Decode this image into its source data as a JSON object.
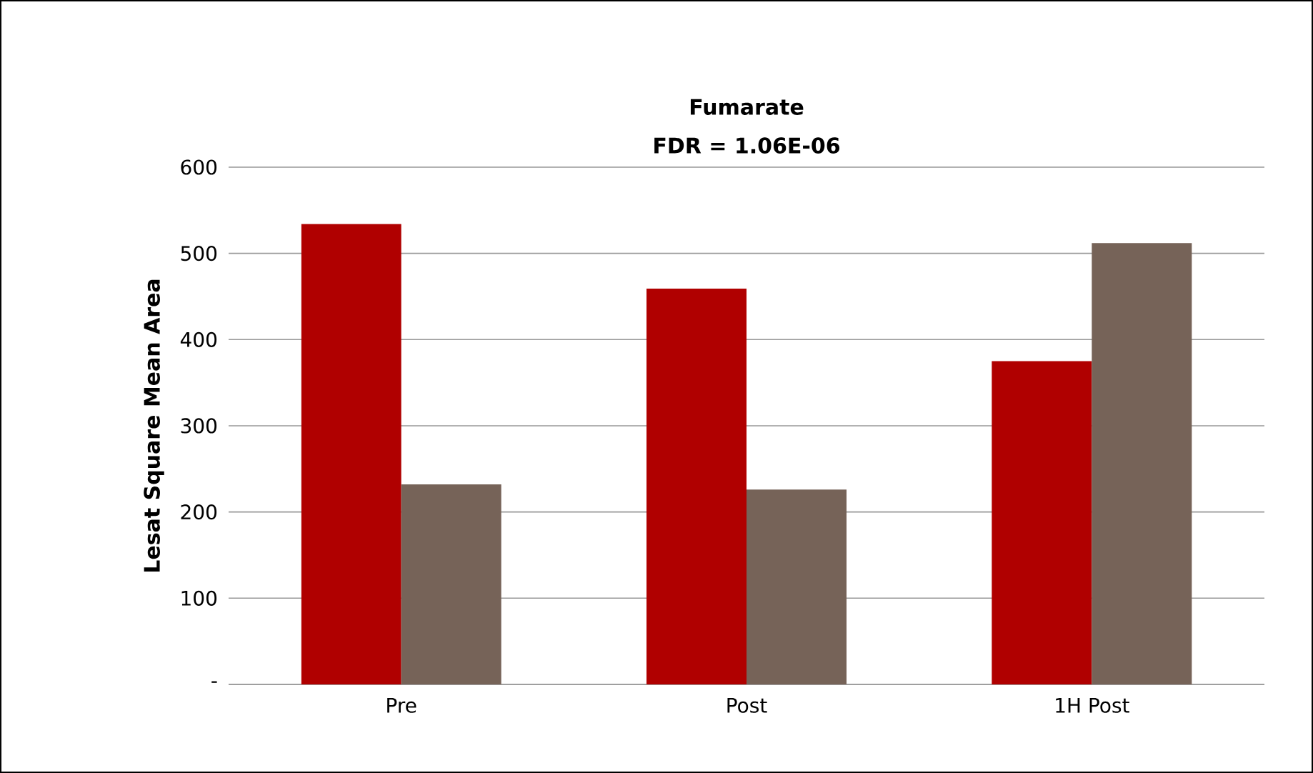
{
  "chart_data": {
    "type": "bar",
    "title": "Fumarate",
    "subtitle": "FDR = 1.06E-06",
    "ylabel": "Lesat Square Mean Area",
    "categories": [
      "Pre",
      "Post",
      "1H Post"
    ],
    "series": [
      {
        "color": "#b00000",
        "values": [
          534,
          459,
          375
        ]
      },
      {
        "color": "#766358",
        "values": [
          232,
          226,
          512
        ]
      }
    ],
    "ylim": [
      0,
      600
    ],
    "yticks": [
      {
        "value": 0,
        "label": "-"
      },
      100,
      200,
      300,
      400,
      500,
      600
    ],
    "grid": "y"
  }
}
